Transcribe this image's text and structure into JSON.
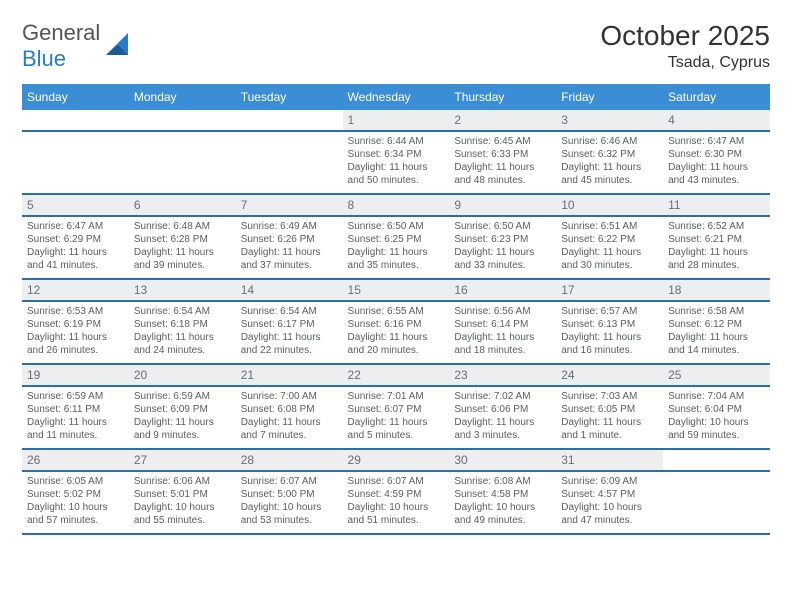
{
  "logo": {
    "word1": "General",
    "word2": "Blue"
  },
  "title": "October 2025",
  "location": "Tsada, Cyprus",
  "header_bg": "#3b8dd6",
  "header_fg": "#ffffff",
  "row_rule_color": "#2a6fa8",
  "daynum_bg": "#eceeef",
  "daynum_fg": "#6a6f74",
  "text_fg": "#5a5f64",
  "weekdays": [
    "Sunday",
    "Monday",
    "Tuesday",
    "Wednesday",
    "Thursday",
    "Friday",
    "Saturday"
  ],
  "weeks": [
    [
      null,
      null,
      null,
      {
        "n": "1",
        "sr": "6:44 AM",
        "ss": "6:34 PM",
        "dl": "Daylight: 11 hours and 50 minutes."
      },
      {
        "n": "2",
        "sr": "6:45 AM",
        "ss": "6:33 PM",
        "dl": "Daylight: 11 hours and 48 minutes."
      },
      {
        "n": "3",
        "sr": "6:46 AM",
        "ss": "6:32 PM",
        "dl": "Daylight: 11 hours and 45 minutes."
      },
      {
        "n": "4",
        "sr": "6:47 AM",
        "ss": "6:30 PM",
        "dl": "Daylight: 11 hours and 43 minutes."
      }
    ],
    [
      {
        "n": "5",
        "sr": "6:47 AM",
        "ss": "6:29 PM",
        "dl": "Daylight: 11 hours and 41 minutes."
      },
      {
        "n": "6",
        "sr": "6:48 AM",
        "ss": "6:28 PM",
        "dl": "Daylight: 11 hours and 39 minutes."
      },
      {
        "n": "7",
        "sr": "6:49 AM",
        "ss": "6:26 PM",
        "dl": "Daylight: 11 hours and 37 minutes."
      },
      {
        "n": "8",
        "sr": "6:50 AM",
        "ss": "6:25 PM",
        "dl": "Daylight: 11 hours and 35 minutes."
      },
      {
        "n": "9",
        "sr": "6:50 AM",
        "ss": "6:23 PM",
        "dl": "Daylight: 11 hours and 33 minutes."
      },
      {
        "n": "10",
        "sr": "6:51 AM",
        "ss": "6:22 PM",
        "dl": "Daylight: 11 hours and 30 minutes."
      },
      {
        "n": "11",
        "sr": "6:52 AM",
        "ss": "6:21 PM",
        "dl": "Daylight: 11 hours and 28 minutes."
      }
    ],
    [
      {
        "n": "12",
        "sr": "6:53 AM",
        "ss": "6:19 PM",
        "dl": "Daylight: 11 hours and 26 minutes."
      },
      {
        "n": "13",
        "sr": "6:54 AM",
        "ss": "6:18 PM",
        "dl": "Daylight: 11 hours and 24 minutes."
      },
      {
        "n": "14",
        "sr": "6:54 AM",
        "ss": "6:17 PM",
        "dl": "Daylight: 11 hours and 22 minutes."
      },
      {
        "n": "15",
        "sr": "6:55 AM",
        "ss": "6:16 PM",
        "dl": "Daylight: 11 hours and 20 minutes."
      },
      {
        "n": "16",
        "sr": "6:56 AM",
        "ss": "6:14 PM",
        "dl": "Daylight: 11 hours and 18 minutes."
      },
      {
        "n": "17",
        "sr": "6:57 AM",
        "ss": "6:13 PM",
        "dl": "Daylight: 11 hours and 16 minutes."
      },
      {
        "n": "18",
        "sr": "6:58 AM",
        "ss": "6:12 PM",
        "dl": "Daylight: 11 hours and 14 minutes."
      }
    ],
    [
      {
        "n": "19",
        "sr": "6:59 AM",
        "ss": "6:11 PM",
        "dl": "Daylight: 11 hours and 11 minutes."
      },
      {
        "n": "20",
        "sr": "6:59 AM",
        "ss": "6:09 PM",
        "dl": "Daylight: 11 hours and 9 minutes."
      },
      {
        "n": "21",
        "sr": "7:00 AM",
        "ss": "6:08 PM",
        "dl": "Daylight: 11 hours and 7 minutes."
      },
      {
        "n": "22",
        "sr": "7:01 AM",
        "ss": "6:07 PM",
        "dl": "Daylight: 11 hours and 5 minutes."
      },
      {
        "n": "23",
        "sr": "7:02 AM",
        "ss": "6:06 PM",
        "dl": "Daylight: 11 hours and 3 minutes."
      },
      {
        "n": "24",
        "sr": "7:03 AM",
        "ss": "6:05 PM",
        "dl": "Daylight: 11 hours and 1 minute."
      },
      {
        "n": "25",
        "sr": "7:04 AM",
        "ss": "6:04 PM",
        "dl": "Daylight: 10 hours and 59 minutes."
      }
    ],
    [
      {
        "n": "26",
        "sr": "6:05 AM",
        "ss": "5:02 PM",
        "dl": "Daylight: 10 hours and 57 minutes."
      },
      {
        "n": "27",
        "sr": "6:06 AM",
        "ss": "5:01 PM",
        "dl": "Daylight: 10 hours and 55 minutes."
      },
      {
        "n": "28",
        "sr": "6:07 AM",
        "ss": "5:00 PM",
        "dl": "Daylight: 10 hours and 53 minutes."
      },
      {
        "n": "29",
        "sr": "6:07 AM",
        "ss": "4:59 PM",
        "dl": "Daylight: 10 hours and 51 minutes."
      },
      {
        "n": "30",
        "sr": "6:08 AM",
        "ss": "4:58 PM",
        "dl": "Daylight: 10 hours and 49 minutes."
      },
      {
        "n": "31",
        "sr": "6:09 AM",
        "ss": "4:57 PM",
        "dl": "Daylight: 10 hours and 47 minutes."
      },
      null
    ]
  ],
  "labels": {
    "sunrise": "Sunrise:",
    "sunset": "Sunset:"
  }
}
